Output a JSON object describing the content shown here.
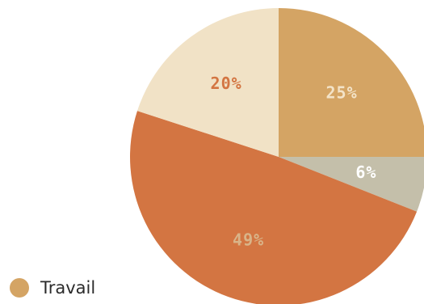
{
  "chart_data": {
    "type": "pie",
    "slices": [
      {
        "label": "25%",
        "value": 25,
        "color": "#D4A464",
        "label_color": "#F3E3C8"
      },
      {
        "label": "6%",
        "value": 6,
        "color": "#C4BFAA",
        "label_color": "#FFFFFF"
      },
      {
        "label": "49%",
        "value": 49,
        "color": "#D37542",
        "label_color": "#D9B489"
      },
      {
        "label": "20%",
        "value": 20,
        "color": "#F1E2C6",
        "label_color": "#D37542"
      }
    ],
    "legend": [
      {
        "name": "Travail",
        "color": "#D4A464"
      }
    ],
    "legend_position": "bottom-left"
  }
}
